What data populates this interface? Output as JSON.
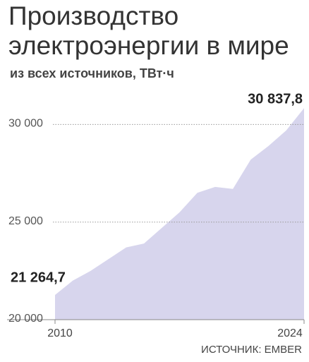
{
  "chart_data": {
    "type": "area",
    "title": "Производство электроэнергии в мире",
    "subtitle": "из всех источников,  ТВт·ч",
    "source": "ИСТОЧНИК: EMBER",
    "x": [
      2010,
      2011,
      2012,
      2013,
      2014,
      2015,
      2016,
      2017,
      2018,
      2019,
      2020,
      2021,
      2022,
      2023,
      2024
    ],
    "values": [
      21264.7,
      22000,
      22500,
      23100,
      23700,
      23900,
      24700,
      25500,
      26500,
      26800,
      26700,
      28200,
      28900,
      29700,
      30837.8
    ],
    "value_labels": [
      "21 264,7",
      null,
      null,
      null,
      null,
      null,
      null,
      null,
      null,
      null,
      null,
      null,
      null,
      null,
      "30 837,8"
    ],
    "color": "#d7d5ed",
    "xlim": [
      2010,
      2024
    ],
    "xticks": [
      2010,
      2024
    ],
    "ylim": [
      20000,
      31100
    ],
    "yticks": [
      {
        "value": 20000,
        "label": "20 000"
      },
      {
        "value": 25000,
        "label": "25 000"
      },
      {
        "value": 30000,
        "label": "30 000"
      }
    ],
    "grid": true
  }
}
